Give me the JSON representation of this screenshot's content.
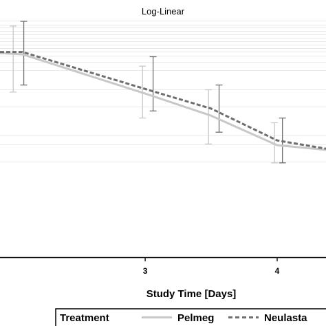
{
  "chart_data": {
    "type": "line",
    "title": "Log-Linear",
    "xlabel": "Study Time [Days]",
    "ylabel": "",
    "xlim": [
      1.9,
      4.37
    ],
    "ylim": [
      0,
      1
    ],
    "y_scale": "log",
    "x_ticks": [
      {
        "value": 3,
        "label": "3"
      },
      {
        "value": 4,
        "label": "4"
      }
    ],
    "grid": true,
    "legend": {
      "title": "Treatment",
      "placement": "bottom",
      "entries": [
        "Pelmeg",
        "Neulasta"
      ]
    },
    "series": [
      {
        "name": "Pelmeg",
        "style": "solid",
        "color": "#c8c8c8",
        "points": [
          {
            "x": 1.9,
            "y": 0.865
          },
          {
            "x": 2.07,
            "y": 0.86
          },
          {
            "x": 3.02,
            "y": 0.69
          },
          {
            "x": 3.5,
            "y": 0.6
          },
          {
            "x": 4.0,
            "y": 0.475
          },
          {
            "x": 4.37,
            "y": 0.455
          }
        ],
        "error_bars": [
          {
            "x": 2.0,
            "low": 0.7,
            "high": 0.98
          },
          {
            "x": 2.98,
            "low": 0.59,
            "high": 0.81
          },
          {
            "x": 3.48,
            "low": 0.48,
            "high": 0.71
          },
          {
            "x": 3.98,
            "low": 0.4,
            "high": 0.57
          }
        ]
      },
      {
        "name": "Neulasta",
        "style": "dashed",
        "color": "#6e6e6e",
        "points": [
          {
            "x": 1.9,
            "y": 0.87
          },
          {
            "x": 2.07,
            "y": 0.87
          },
          {
            "x": 3.02,
            "y": 0.71
          },
          {
            "x": 3.5,
            "y": 0.63
          },
          {
            "x": 4.0,
            "y": 0.495
          },
          {
            "x": 4.37,
            "y": 0.46
          }
        ],
        "error_bars": [
          {
            "x": 2.08,
            "low": 0.73,
            "high": 1.0
          },
          {
            "x": 3.06,
            "low": 0.62,
            "high": 0.85
          },
          {
            "x": 3.56,
            "low": 0.53,
            "high": 0.73
          },
          {
            "x": 4.04,
            "low": 0.4,
            "high": 0.59
          }
        ]
      }
    ]
  }
}
